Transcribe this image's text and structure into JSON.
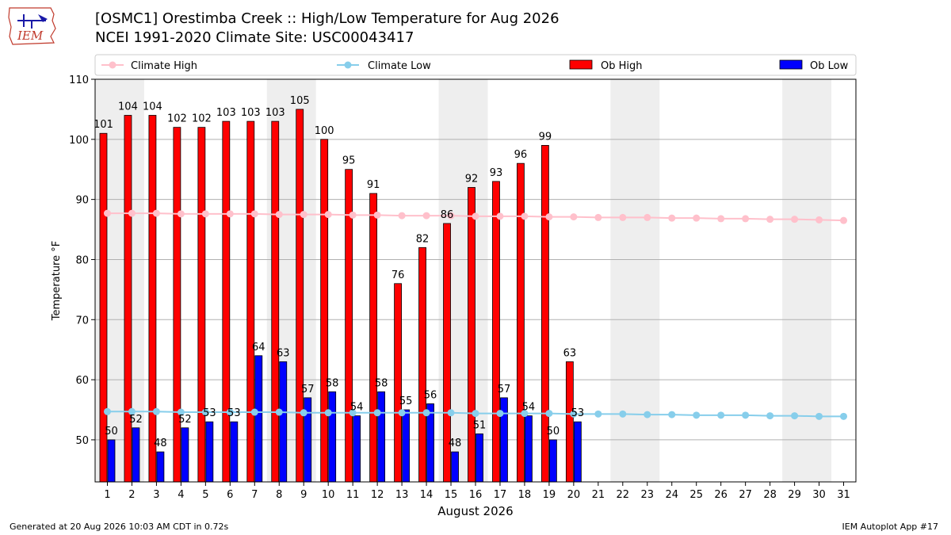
{
  "header": {
    "title_line1": "[OSMC1] Orestimba Creek :: High/Low Temperature for Aug 2026",
    "title_line2": "NCEI 1991-2020 Climate Site: USC00043417",
    "logo_text": "IEM"
  },
  "footer": {
    "left": "Generated at 20 Aug 2026 10:03 AM CDT in 0.72s",
    "right": "IEM Autoplot App #17"
  },
  "colors": {
    "ob_high": "#ff0000",
    "ob_low": "#0000ff",
    "climate_high": "#ffc0cb",
    "climate_low": "#87ceeb",
    "weekend_shade": "#eeeeee",
    "grid": "#b0b0b0"
  },
  "chart_data": {
    "type": "bar",
    "xlabel": "August 2026",
    "ylabel": "Temperature °F",
    "ylim": [
      43,
      110
    ],
    "yticks": [
      50,
      60,
      70,
      80,
      90,
      100,
      110
    ],
    "grid": "horizontal",
    "legend_position": "top",
    "days": [
      1,
      2,
      3,
      4,
      5,
      6,
      7,
      8,
      9,
      10,
      11,
      12,
      13,
      14,
      15,
      16,
      17,
      18,
      19,
      20,
      21,
      22,
      23,
      24,
      25,
      26,
      27,
      28,
      29,
      30,
      31
    ],
    "shaded_day_ranges": [
      [
        1,
        2
      ],
      [
        8,
        9
      ],
      [
        15,
        16
      ],
      [
        22,
        23
      ],
      [
        29,
        30
      ]
    ],
    "series": [
      {
        "name": "Ob High",
        "kind": "bar",
        "values": [
          101,
          104,
          104,
          102,
          102,
          103,
          103,
          103,
          105,
          100,
          95,
          91,
          76,
          82,
          86,
          92,
          93,
          96,
          99,
          63
        ]
      },
      {
        "name": "Ob Low",
        "kind": "bar",
        "values": [
          50,
          52,
          48,
          52,
          53,
          53,
          64,
          63,
          57,
          58,
          54,
          58,
          55,
          56,
          48,
          51,
          57,
          54,
          50,
          53
        ]
      },
      {
        "name": "Climate High",
        "kind": "line",
        "values": [
          87.7,
          87.7,
          87.7,
          87.6,
          87.6,
          87.6,
          87.6,
          87.5,
          87.5,
          87.5,
          87.4,
          87.4,
          87.3,
          87.3,
          87.3,
          87.2,
          87.2,
          87.2,
          87.1,
          87.1,
          87.0,
          87.0,
          87.0,
          86.9,
          86.9,
          86.8,
          86.8,
          86.7,
          86.7,
          86.6,
          86.5
        ]
      },
      {
        "name": "Climate Low",
        "kind": "line",
        "values": [
          54.7,
          54.7,
          54.7,
          54.6,
          54.6,
          54.6,
          54.6,
          54.6,
          54.5,
          54.5,
          54.5,
          54.5,
          54.5,
          54.5,
          54.5,
          54.4,
          54.4,
          54.4,
          54.4,
          54.3,
          54.3,
          54.3,
          54.2,
          54.2,
          54.1,
          54.1,
          54.1,
          54.0,
          54.0,
          53.9,
          53.9
        ]
      }
    ],
    "legend": [
      "Climate High",
      "Climate Low",
      "Ob High",
      "Ob Low"
    ]
  }
}
